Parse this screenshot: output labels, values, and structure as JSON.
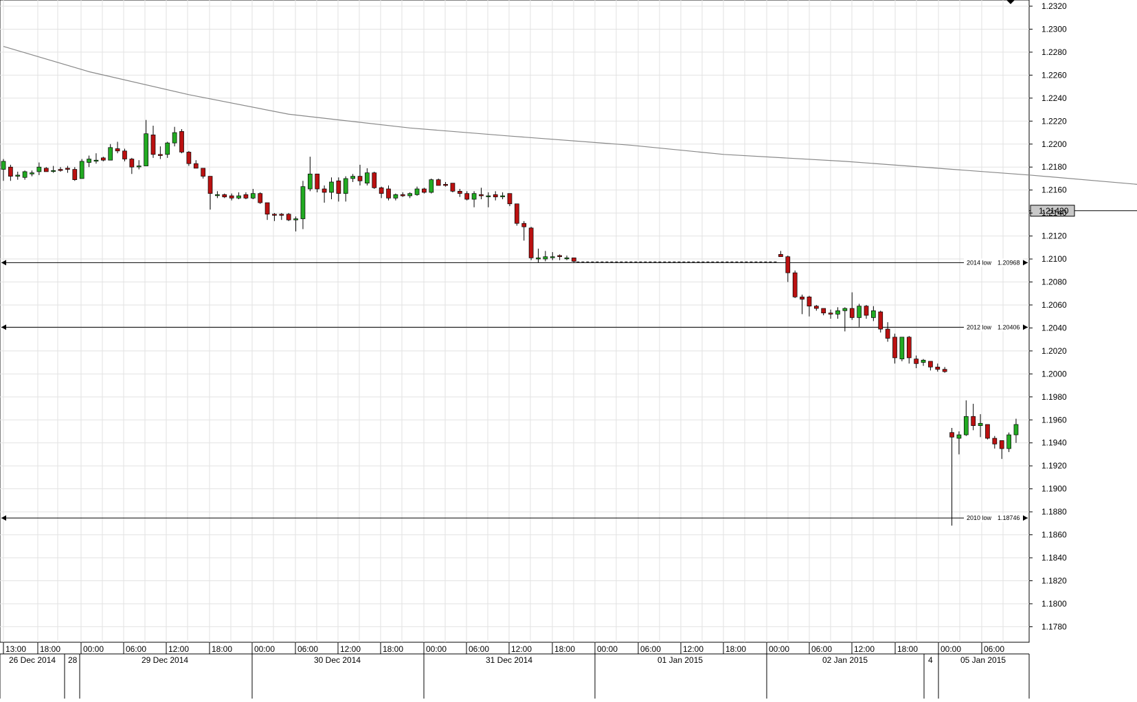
{
  "chart_data": {
    "type": "candlestick",
    "title": "",
    "xlabel": "",
    "ylabel": "",
    "ylim": [
      1.1765,
      1.2325
    ],
    "grid": true,
    "y_ticks": [
      1.232,
      1.23,
      1.228,
      1.226,
      1.224,
      1.222,
      1.22,
      1.218,
      1.216,
      1.214,
      1.212,
      1.21,
      1.208,
      1.206,
      1.204,
      1.202,
      1.2,
      1.198,
      1.196,
      1.194,
      1.192,
      1.19,
      1.188,
      1.186,
      1.184,
      1.182,
      1.18,
      1.178
    ],
    "y_tick_labels": [
      "1.2320",
      "1.2300",
      "1.2280",
      "1.2260",
      "1.2240",
      "1.2220",
      "1.2200",
      "1.2180",
      "1.2160",
      "1.2140",
      "1.2120",
      "1.2100",
      "1.2080",
      "1.2060",
      "1.2040",
      "1.2020",
      "1.2000",
      "1.1980",
      "1.1960",
      "1.1940",
      "1.1920",
      "1.1900",
      "1.1880",
      "1.1860",
      "1.1840",
      "1.1820",
      "1.1800",
      "1.1780"
    ],
    "x_time_labels": [
      "13:00",
      "18:00",
      "00:00",
      "06:00",
      "12:00",
      "18:00",
      "00:00",
      "06:00",
      "12:00",
      "18:00",
      "00:00",
      "06:00",
      "12:00",
      "18:00",
      "00:00",
      "06:00",
      "12:00",
      "18:00",
      "00:00",
      "06:00",
      "12:00",
      "18:00",
      "00:00",
      "06:00"
    ],
    "x_date_labels": [
      "26 Dec 2014",
      "28",
      "29 Dec 2014",
      "30 Dec 2014",
      "31 Dec 2014",
      "01 Jan 2015",
      "02 Jan 2015",
      "4",
      "05 Jan 2015"
    ],
    "moving_average": {
      "x": [
        0,
        12,
        26,
        40,
        57,
        71,
        88,
        101,
        118,
        144,
        172,
        195
      ],
      "y": [
        1.2285,
        1.2263,
        1.2243,
        1.2226,
        1.2214,
        1.2207,
        1.2199,
        1.2191,
        1.2185,
        1.2173,
        1.2158,
        1.2142
      ]
    },
    "price_marker": {
      "value": 1.2142,
      "label": "1.21420"
    },
    "levels": [
      {
        "value": 1.20968,
        "label": "2014 low",
        "value_label": "1.20968"
      },
      {
        "value": 1.20406,
        "label": "2012 low",
        "value_label": "1.20406"
      },
      {
        "value": 1.18746,
        "label": "2010 low",
        "value_label": "1.18746"
      }
    ],
    "connector": {
      "from_x": 109,
      "to_x": 142,
      "value": 1.20975
    },
    "candles": [
      {
        "x": 0,
        "o": 1.2178,
        "h": 1.2187,
        "l": 1.2168,
        "c": 1.2185
      },
      {
        "x": 1,
        "o": 1.218,
        "h": 1.2182,
        "l": 1.2168,
        "c": 1.2172
      },
      {
        "x": 2,
        "o": 1.2172,
        "h": 1.2176,
        "l": 1.2169,
        "c": 1.2173
      },
      {
        "x": 3,
        "o": 1.2171,
        "h": 1.2177,
        "l": 1.2169,
        "c": 1.2176
      },
      {
        "x": 4,
        "o": 1.2174,
        "h": 1.2177,
        "l": 1.2172,
        "c": 1.2175
      },
      {
        "x": 5,
        "o": 1.2176,
        "h": 1.2184,
        "l": 1.2173,
        "c": 1.218
      },
      {
        "x": 6,
        "o": 1.2179,
        "h": 1.218,
        "l": 1.2176,
        "c": 1.2176
      },
      {
        "x": 7,
        "o": 1.2177,
        "h": 1.2181,
        "l": 1.2175,
        "c": 1.2177
      },
      {
        "x": 8,
        "o": 1.2178,
        "h": 1.218,
        "l": 1.2176,
        "c": 1.2177
      },
      {
        "x": 9,
        "o": 1.2179,
        "h": 1.2181,
        "l": 1.2175,
        "c": 1.2178
      },
      {
        "x": 10,
        "o": 1.2178,
        "h": 1.218,
        "l": 1.2168,
        "c": 1.2169
      },
      {
        "x": 11,
        "o": 1.217,
        "h": 1.2187,
        "l": 1.217,
        "c": 1.2185
      },
      {
        "x": 12,
        "o": 1.2184,
        "h": 1.219,
        "l": 1.218,
        "c": 1.2187
      },
      {
        "x": 13,
        "o": 1.2186,
        "h": 1.2192,
        "l": 1.2183,
        "c": 1.2186
      },
      {
        "x": 14,
        "o": 1.2188,
        "h": 1.2189,
        "l": 1.2185,
        "c": 1.2186
      },
      {
        "x": 15,
        "o": 1.2186,
        "h": 1.22,
        "l": 1.2186,
        "c": 1.2197
      },
      {
        "x": 16,
        "o": 1.2196,
        "h": 1.2202,
        "l": 1.2192,
        "c": 1.2194
      },
      {
        "x": 17,
        "o": 1.2194,
        "h": 1.2196,
        "l": 1.2185,
        "c": 1.2187
      },
      {
        "x": 18,
        "o": 1.2187,
        "h": 1.2188,
        "l": 1.2174,
        "c": 1.218
      },
      {
        "x": 19,
        "o": 1.2181,
        "h": 1.2186,
        "l": 1.2178,
        "c": 1.2181
      },
      {
        "x": 20,
        "o": 1.2181,
        "h": 1.2221,
        "l": 1.2181,
        "c": 1.2209
      },
      {
        "x": 21,
        "o": 1.2208,
        "h": 1.2216,
        "l": 1.2188,
        "c": 1.2191
      },
      {
        "x": 22,
        "o": 1.2191,
        "h": 1.2198,
        "l": 1.2187,
        "c": 1.219
      },
      {
        "x": 23,
        "o": 1.2191,
        "h": 1.2202,
        "l": 1.2188,
        "c": 1.2201
      },
      {
        "x": 24,
        "o": 1.2201,
        "h": 1.2215,
        "l": 1.2198,
        "c": 1.221
      },
      {
        "x": 25,
        "o": 1.2211,
        "h": 1.2213,
        "l": 1.2192,
        "c": 1.2193
      },
      {
        "x": 26,
        "o": 1.2193,
        "h": 1.2194,
        "l": 1.2181,
        "c": 1.2183
      },
      {
        "x": 27,
        "o": 1.2183,
        "h": 1.2186,
        "l": 1.2179,
        "c": 1.2179
      },
      {
        "x": 28,
        "o": 1.2179,
        "h": 1.2179,
        "l": 1.217,
        "c": 1.2172
      },
      {
        "x": 29,
        "o": 1.2172,
        "h": 1.2172,
        "l": 1.2143,
        "c": 1.2157
      },
      {
        "x": 30,
        "o": 1.2156,
        "h": 1.2159,
        "l": 1.2153,
        "c": 1.2156
      },
      {
        "x": 31,
        "o": 1.2156,
        "h": 1.2157,
        "l": 1.2153,
        "c": 1.2154
      },
      {
        "x": 32,
        "o": 1.2155,
        "h": 1.2157,
        "l": 1.2151,
        "c": 1.2153
      },
      {
        "x": 33,
        "o": 1.2153,
        "h": 1.2158,
        "l": 1.2152,
        "c": 1.2155
      },
      {
        "x": 34,
        "o": 1.2156,
        "h": 1.2158,
        "l": 1.2152,
        "c": 1.2153
      },
      {
        "x": 35,
        "o": 1.2153,
        "h": 1.2161,
        "l": 1.2152,
        "c": 1.2157
      },
      {
        "x": 36,
        "o": 1.2157,
        "h": 1.2158,
        "l": 1.2148,
        "c": 1.2149
      },
      {
        "x": 37,
        "o": 1.2149,
        "h": 1.2149,
        "l": 1.2134,
        "c": 1.2139
      },
      {
        "x": 38,
        "o": 1.2139,
        "h": 1.214,
        "l": 1.2133,
        "c": 1.2138
      },
      {
        "x": 39,
        "o": 1.2139,
        "h": 1.214,
        "l": 1.2134,
        "c": 1.2138
      },
      {
        "x": 40,
        "o": 1.2139,
        "h": 1.214,
        "l": 1.2133,
        "c": 1.2134
      },
      {
        "x": 41,
        "o": 1.2134,
        "h": 1.2137,
        "l": 1.2124,
        "c": 1.2135
      },
      {
        "x": 42,
        "o": 1.2135,
        "h": 1.2168,
        "l": 1.2126,
        "c": 1.2163
      },
      {
        "x": 43,
        "o": 1.2161,
        "h": 1.2189,
        "l": 1.2159,
        "c": 1.2174
      },
      {
        "x": 44,
        "o": 1.2174,
        "h": 1.2174,
        "l": 1.2158,
        "c": 1.2161
      },
      {
        "x": 45,
        "o": 1.2161,
        "h": 1.2164,
        "l": 1.2149,
        "c": 1.2158
      },
      {
        "x": 46,
        "o": 1.2158,
        "h": 1.2171,
        "l": 1.2152,
        "c": 1.2167
      },
      {
        "x": 47,
        "o": 1.2168,
        "h": 1.2171,
        "l": 1.215,
        "c": 1.2157
      },
      {
        "x": 48,
        "o": 1.2157,
        "h": 1.2172,
        "l": 1.215,
        "c": 1.217
      },
      {
        "x": 49,
        "o": 1.217,
        "h": 1.2174,
        "l": 1.2167,
        "c": 1.2172
      },
      {
        "x": 50,
        "o": 1.2172,
        "h": 1.2182,
        "l": 1.2164,
        "c": 1.2168
      },
      {
        "x": 51,
        "o": 1.2166,
        "h": 1.2179,
        "l": 1.2164,
        "c": 1.2175
      },
      {
        "x": 52,
        "o": 1.2175,
        "h": 1.2176,
        "l": 1.2161,
        "c": 1.2162
      },
      {
        "x": 53,
        "o": 1.2162,
        "h": 1.2163,
        "l": 1.2153,
        "c": 1.2157
      },
      {
        "x": 54,
        "o": 1.2161,
        "h": 1.2164,
        "l": 1.2151,
        "c": 1.2153
      },
      {
        "x": 55,
        "o": 1.2153,
        "h": 1.2157,
        "l": 1.2151,
        "c": 1.2156
      },
      {
        "x": 56,
        "o": 1.2156,
        "h": 1.2158,
        "l": 1.2154,
        "c": 1.2155
      },
      {
        "x": 57,
        "o": 1.2155,
        "h": 1.2158,
        "l": 1.2153,
        "c": 1.2157
      },
      {
        "x": 58,
        "o": 1.2156,
        "h": 1.2163,
        "l": 1.2155,
        "c": 1.2161
      },
      {
        "x": 59,
        "o": 1.2161,
        "h": 1.2162,
        "l": 1.2157,
        "c": 1.2158
      },
      {
        "x": 60,
        "o": 1.2158,
        "h": 1.217,
        "l": 1.2157,
        "c": 1.2169
      },
      {
        "x": 61,
        "o": 1.2169,
        "h": 1.217,
        "l": 1.2164,
        "c": 1.2164
      },
      {
        "x": 62,
        "o": 1.2165,
        "h": 1.2167,
        "l": 1.2163,
        "c": 1.2164
      },
      {
        "x": 63,
        "o": 1.2166,
        "h": 1.2166,
        "l": 1.2158,
        "c": 1.2159
      },
      {
        "x": 64,
        "o": 1.2159,
        "h": 1.2161,
        "l": 1.2154,
        "c": 1.2157
      },
      {
        "x": 65,
        "o": 1.2157,
        "h": 1.2159,
        "l": 1.2151,
        "c": 1.2152
      },
      {
        "x": 66,
        "o": 1.2152,
        "h": 1.2159,
        "l": 1.2145,
        "c": 1.2157
      },
      {
        "x": 67,
        "o": 1.2156,
        "h": 1.2162,
        "l": 1.2152,
        "c": 1.2155
      },
      {
        "x": 68,
        "o": 1.2155,
        "h": 1.2158,
        "l": 1.2145,
        "c": 1.2155
      },
      {
        "x": 69,
        "o": 1.2156,
        "h": 1.2159,
        "l": 1.2151,
        "c": 1.2154
      },
      {
        "x": 70,
        "o": 1.2155,
        "h": 1.2158,
        "l": 1.2152,
        "c": 1.2155
      },
      {
        "x": 71,
        "o": 1.2157,
        "h": 1.2157,
        "l": 1.2146,
        "c": 1.2148
      },
      {
        "x": 72,
        "o": 1.2148,
        "h": 1.2148,
        "l": 1.2129,
        "c": 1.2131
      },
      {
        "x": 73,
        "o": 1.2131,
        "h": 1.2133,
        "l": 1.2116,
        "c": 1.2128
      },
      {
        "x": 74,
        "o": 1.2127,
        "h": 1.2128,
        "l": 1.2099,
        "c": 1.2101
      },
      {
        "x": 75,
        "o": 1.21,
        "h": 1.2109,
        "l": 1.2097,
        "c": 1.2101
      },
      {
        "x": 76,
        "o": 1.21,
        "h": 1.2107,
        "l": 1.2098,
        "c": 1.2102
      },
      {
        "x": 77,
        "o": 1.2102,
        "h": 1.2106,
        "l": 1.2099,
        "c": 1.2102
      },
      {
        "x": 78,
        "o": 1.2103,
        "h": 1.2104,
        "l": 1.2099,
        "c": 1.2102
      },
      {
        "x": 79,
        "o": 1.2101,
        "h": 1.2103,
        "l": 1.2099,
        "c": 1.2101
      },
      {
        "x": 80,
        "o": 1.2101,
        "h": 1.2101,
        "l": 1.2097,
        "c": 1.2098
      },
      {
        "x": 109,
        "o": 1.2104,
        "h": 1.2107,
        "l": 1.2102,
        "c": 1.2102
      },
      {
        "x": 110,
        "o": 1.2102,
        "h": 1.2103,
        "l": 1.208,
        "c": 1.2088
      },
      {
        "x": 111,
        "o": 1.2088,
        "h": 1.209,
        "l": 1.2066,
        "c": 1.2067
      },
      {
        "x": 112,
        "o": 1.2067,
        "h": 1.2069,
        "l": 1.2052,
        "c": 1.2065
      },
      {
        "x": 113,
        "o": 1.2067,
        "h": 1.2068,
        "l": 1.205,
        "c": 1.2059
      },
      {
        "x": 114,
        "o": 1.2059,
        "h": 1.206,
        "l": 1.2055,
        "c": 1.2057
      },
      {
        "x": 115,
        "o": 1.2057,
        "h": 1.2057,
        "l": 1.2051,
        "c": 1.2053
      },
      {
        "x": 116,
        "o": 1.2053,
        "h": 1.2056,
        "l": 1.2048,
        "c": 1.2052
      },
      {
        "x": 117,
        "o": 1.2052,
        "h": 1.2058,
        "l": 1.2048,
        "c": 1.2055
      },
      {
        "x": 118,
        "o": 1.2055,
        "h": 1.2058,
        "l": 1.2037,
        "c": 1.2057
      },
      {
        "x": 119,
        "o": 1.2057,
        "h": 1.2071,
        "l": 1.2047,
        "c": 1.2049
      },
      {
        "x": 120,
        "o": 1.2049,
        "h": 1.2061,
        "l": 1.2041,
        "c": 1.2059
      },
      {
        "x": 121,
        "o": 1.2059,
        "h": 1.206,
        "l": 1.2048,
        "c": 1.2051
      },
      {
        "x": 122,
        "o": 1.2049,
        "h": 1.2059,
        "l": 1.2046,
        "c": 1.2055
      },
      {
        "x": 123,
        "o": 1.2054,
        "h": 1.2055,
        "l": 1.2036,
        "c": 1.2039
      },
      {
        "x": 124,
        "o": 1.2039,
        "h": 1.2045,
        "l": 1.2028,
        "c": 1.2031
      },
      {
        "x": 125,
        "o": 1.2032,
        "h": 1.2035,
        "l": 1.2009,
        "c": 1.2014
      },
      {
        "x": 126,
        "o": 1.2013,
        "h": 1.2032,
        "l": 1.2011,
        "c": 1.2032
      },
      {
        "x": 127,
        "o": 1.2032,
        "h": 1.2033,
        "l": 1.2009,
        "c": 1.2014
      },
      {
        "x": 128,
        "o": 1.2013,
        "h": 1.2016,
        "l": 1.2005,
        "c": 1.2009
      },
      {
        "x": 129,
        "o": 1.201,
        "h": 1.2013,
        "l": 1.2007,
        "c": 1.2012
      },
      {
        "x": 130,
        "o": 1.2011,
        "h": 1.2011,
        "l": 1.2003,
        "c": 1.2006
      },
      {
        "x": 131,
        "o": 1.2006,
        "h": 1.2009,
        "l": 1.2002,
        "c": 1.2004
      },
      {
        "x": 132,
        "o": 1.2004,
        "h": 1.2006,
        "l": 1.2001,
        "c": 1.2002
      },
      {
        "x": 133,
        "o": 1.1949,
        "h": 1.1953,
        "l": 1.1868,
        "c": 1.1945
      },
      {
        "x": 134,
        "o": 1.1944,
        "h": 1.195,
        "l": 1.193,
        "c": 1.1947
      },
      {
        "x": 135,
        "o": 1.1947,
        "h": 1.1977,
        "l": 1.1946,
        "c": 1.1963
      },
      {
        "x": 136,
        "o": 1.1963,
        "h": 1.1974,
        "l": 1.1951,
        "c": 1.1955
      },
      {
        "x": 137,
        "o": 1.1955,
        "h": 1.1965,
        "l": 1.1945,
        "c": 1.1957
      },
      {
        "x": 138,
        "o": 1.1956,
        "h": 1.1956,
        "l": 1.1943,
        "c": 1.1944
      },
      {
        "x": 139,
        "o": 1.1944,
        "h": 1.1946,
        "l": 1.1935,
        "c": 1.1939
      },
      {
        "x": 140,
        "o": 1.1942,
        "h": 1.1942,
        "l": 1.1926,
        "c": 1.1935
      },
      {
        "x": 141,
        "o": 1.1935,
        "h": 1.1949,
        "l": 1.1932,
        "c": 1.1947
      },
      {
        "x": 142,
        "o": 1.1947,
        "h": 1.1961,
        "l": 1.194,
        "c": 1.1956
      }
    ]
  },
  "colors": {
    "up": "#22aa22",
    "down": "#bb1111",
    "grid": "#e2e2e2",
    "moving_average": "#888888",
    "levels": "#000000",
    "price_marker_bg": "#c8c8c8"
  }
}
